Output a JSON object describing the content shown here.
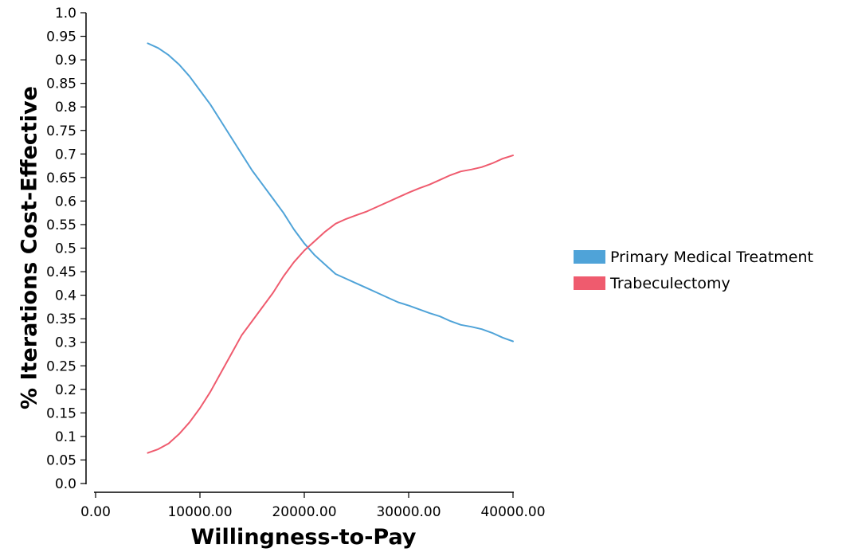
{
  "chart_data": {
    "type": "line",
    "xlabel": "Willingness-to-Pay",
    "ylabel": "% Iterations Cost-Effective",
    "xlim": [
      0,
      40000
    ],
    "ylim": [
      0,
      1
    ],
    "x_ticks": [
      "0.00",
      "10000.00",
      "20000.00",
      "30000.00",
      "40000.00"
    ],
    "x_tick_values": [
      0,
      10000,
      20000,
      30000,
      40000
    ],
    "y_ticks": [
      "0.0",
      "0.05",
      "0.1",
      "0.15",
      "0.2",
      "0.25",
      "0.3",
      "0.35",
      "0.4",
      "0.45",
      "0.5",
      "0.55",
      "0.6",
      "0.65",
      "0.7",
      "0.75",
      "0.8",
      "0.85",
      "0.9",
      "0.95",
      "1.0"
    ],
    "y_tick_values": [
      0,
      0.05,
      0.1,
      0.15,
      0.2,
      0.25,
      0.3,
      0.35,
      0.4,
      0.45,
      0.5,
      0.55,
      0.6,
      0.65,
      0.7,
      0.75,
      0.8,
      0.85,
      0.9,
      0.95,
      1.0
    ],
    "grid": false,
    "legend_position": "right",
    "x": [
      5000,
      6000,
      7000,
      8000,
      9000,
      10000,
      11000,
      12000,
      13000,
      14000,
      15000,
      16000,
      17000,
      18000,
      19000,
      20000,
      21000,
      22000,
      23000,
      24000,
      25000,
      26000,
      27000,
      28000,
      29000,
      30000,
      31000,
      32000,
      33000,
      34000,
      35000,
      36000,
      37000,
      38000,
      39000,
      40000
    ],
    "series": [
      {
        "name": "Primary Medical Treatment",
        "color": "#4fa3d8",
        "values": [
          0.935,
          0.925,
          0.91,
          0.89,
          0.865,
          0.835,
          0.805,
          0.77,
          0.735,
          0.7,
          0.665,
          0.635,
          0.605,
          0.575,
          0.54,
          0.51,
          0.485,
          0.465,
          0.445,
          0.435,
          0.425,
          0.415,
          0.405,
          0.395,
          0.385,
          0.378,
          0.37,
          0.362,
          0.355,
          0.345,
          0.337,
          0.333,
          0.328,
          0.32,
          0.31,
          0.302
        ]
      },
      {
        "name": "Trabeculectomy",
        "color": "#ef5b6e",
        "values": [
          0.065,
          0.073,
          0.085,
          0.105,
          0.13,
          0.16,
          0.195,
          0.235,
          0.275,
          0.315,
          0.345,
          0.375,
          0.405,
          0.44,
          0.47,
          0.495,
          0.515,
          0.535,
          0.552,
          0.562,
          0.57,
          0.578,
          0.588,
          0.598,
          0.608,
          0.618,
          0.627,
          0.635,
          0.645,
          0.655,
          0.663,
          0.667,
          0.672,
          0.68,
          0.69,
          0.697
        ]
      }
    ]
  }
}
